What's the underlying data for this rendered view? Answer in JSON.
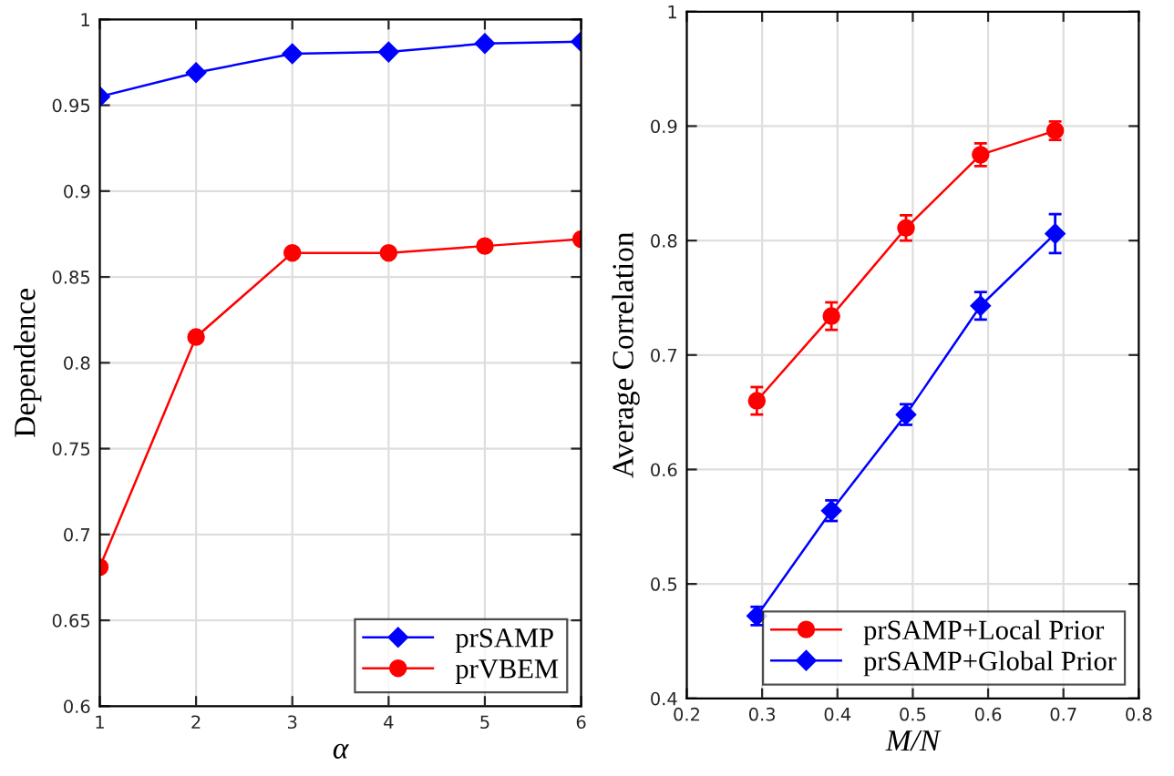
{
  "chart_data": [
    {
      "type": "line",
      "xlabel": "α",
      "ylabel": "Dependence",
      "x": [
        1,
        2,
        3,
        4,
        5,
        6
      ],
      "xlim": [
        1,
        6
      ],
      "xticks": [
        1,
        2,
        3,
        4,
        5,
        6
      ],
      "ylim": [
        0.6,
        1
      ],
      "yticks": [
        0.6,
        0.65,
        0.7,
        0.75,
        0.8,
        0.85,
        0.9,
        0.95,
        1
      ],
      "grid": true,
      "legend": "bottom right",
      "series": [
        {
          "name": "prSAMP",
          "color": "#0000ff",
          "marker": "diamond",
          "values": [
            0.955,
            0.969,
            0.98,
            0.981,
            0.986,
            0.987
          ]
        },
        {
          "name": "prVBEM",
          "color": "#ff0000",
          "marker": "circle",
          "values": [
            0.681,
            0.815,
            0.864,
            0.864,
            0.868,
            0.872
          ]
        }
      ]
    },
    {
      "type": "line",
      "xlabel": "M/N",
      "ylabel": "Average Correlation",
      "x": [
        0.293,
        0.392,
        0.491,
        0.59,
        0.689
      ],
      "xlim": [
        0.2,
        0.8
      ],
      "xticks": [
        0.2,
        0.3,
        0.4,
        0.5,
        0.6,
        0.7,
        0.8
      ],
      "ylim": [
        0.4,
        1
      ],
      "yticks": [
        0.4,
        0.5,
        0.6,
        0.7,
        0.8,
        0.9,
        1
      ],
      "grid": true,
      "legend": "bottom right",
      "series": [
        {
          "name": "prSAMP+Local Prior",
          "color": "#ff0000",
          "marker": "circle",
          "values": [
            0.66,
            0.734,
            0.811,
            0.875,
            0.896
          ],
          "errors": [
            0.012,
            0.012,
            0.011,
            0.01,
            0.008
          ]
        },
        {
          "name": "prSAMP+Global Prior",
          "color": "#0000ff",
          "marker": "diamond",
          "values": [
            0.472,
            0.564,
            0.648,
            0.743,
            0.806
          ],
          "errors": [
            0.008,
            0.009,
            0.009,
            0.012,
            0.017
          ]
        }
      ]
    }
  ]
}
